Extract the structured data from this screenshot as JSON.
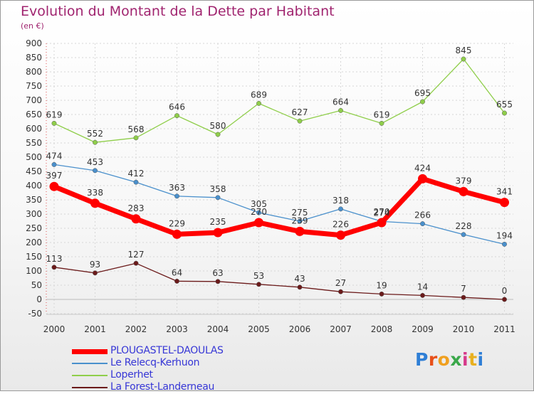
{
  "title": "Evolution du Montant de la Dette par Habitant",
  "subtitle": "(en €)",
  "logo": {
    "text": "Proxiti",
    "letter_colors": [
      "#2f7fd6",
      "#e8501a",
      "#f0a020",
      "#3aa84a",
      "#d63a8a",
      "#e8b020",
      "#2f7fd6"
    ]
  },
  "chart_data": {
    "type": "line",
    "title": "Evolution du Montant de la Dette par Habitant",
    "subtitle": "(en €)",
    "categories": [
      "2000",
      "2001",
      "2002",
      "2003",
      "2004",
      "2005",
      "2006",
      "2007",
      "2008",
      "2009",
      "2010",
      "2011"
    ],
    "ylim": [
      -50,
      900
    ],
    "yticks": [
      -50,
      0,
      50,
      100,
      150,
      200,
      250,
      300,
      350,
      400,
      450,
      500,
      550,
      600,
      650,
      700,
      750,
      800,
      850,
      900
    ],
    "grid": true,
    "legend_position": "bottom-left",
    "series": [
      {
        "name": "PLOUGASTEL-DAOULAS",
        "color": "#ff0000",
        "emphasis": true,
        "values": [
          397,
          338,
          283,
          229,
          235,
          270,
          239,
          226,
          270,
          424,
          379,
          341
        ]
      },
      {
        "name": "Le Relecq-Kerhuon",
        "color": "#4a90cc",
        "values": [
          474,
          453,
          412,
          363,
          358,
          305,
          275,
          318,
          274,
          266,
          228,
          194
        ]
      },
      {
        "name": "Loperhet",
        "color": "#8fce4a",
        "values": [
          619,
          552,
          568,
          646,
          580,
          689,
          627,
          664,
          619,
          695,
          845,
          655
        ]
      },
      {
        "name": "La Forest-Landerneau",
        "color": "#6b1a1a",
        "values": [
          113,
          93,
          127,
          64,
          63,
          53,
          43,
          27,
          19,
          14,
          7,
          0
        ]
      }
    ]
  }
}
